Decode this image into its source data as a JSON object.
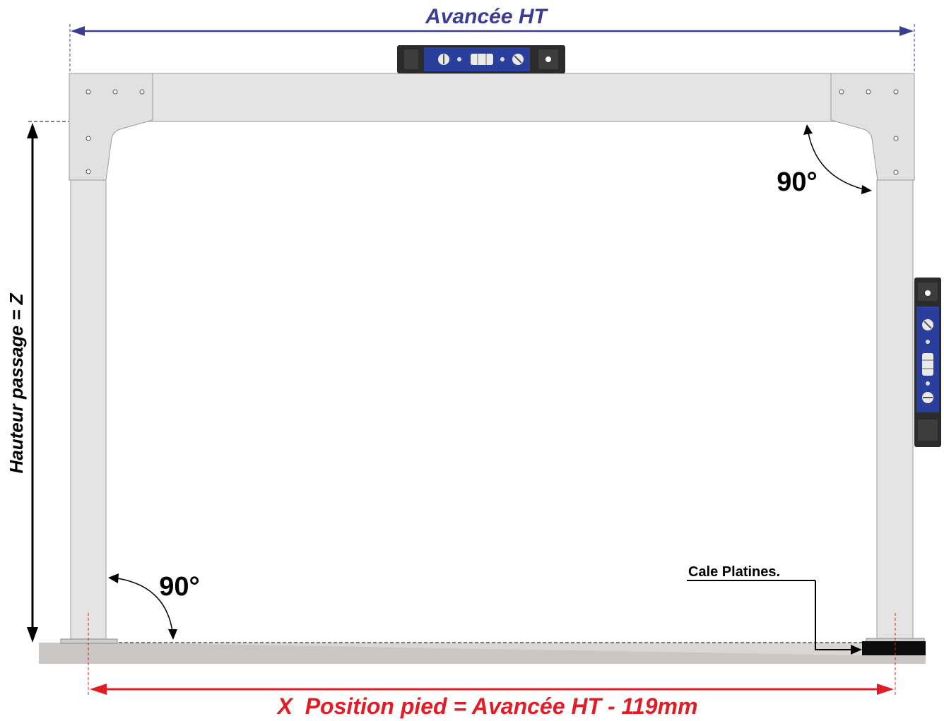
{
  "labels": {
    "top_width": "Avancée HT",
    "height": "Hauteur passage = Z",
    "angle_top": "90°",
    "angle_bottom": "90°",
    "shim": "Cale Platines.",
    "foot_position": "X  Position pied = Avancée HT - 119mm"
  },
  "colors": {
    "blue_dimension": "#3a3d96",
    "red_dimension": "#e21c25",
    "frame_fill": "#e4e4e4",
    "frame_stroke": "#9a9a9a",
    "ground": "#c9c6c3",
    "level_blue": "#2a3f9c",
    "level_body": "#2b2b2b"
  },
  "icons": {
    "level_top": "spirit-level-icon",
    "level_side": "spirit-level-icon",
    "shim_block": "shim-block-icon"
  }
}
